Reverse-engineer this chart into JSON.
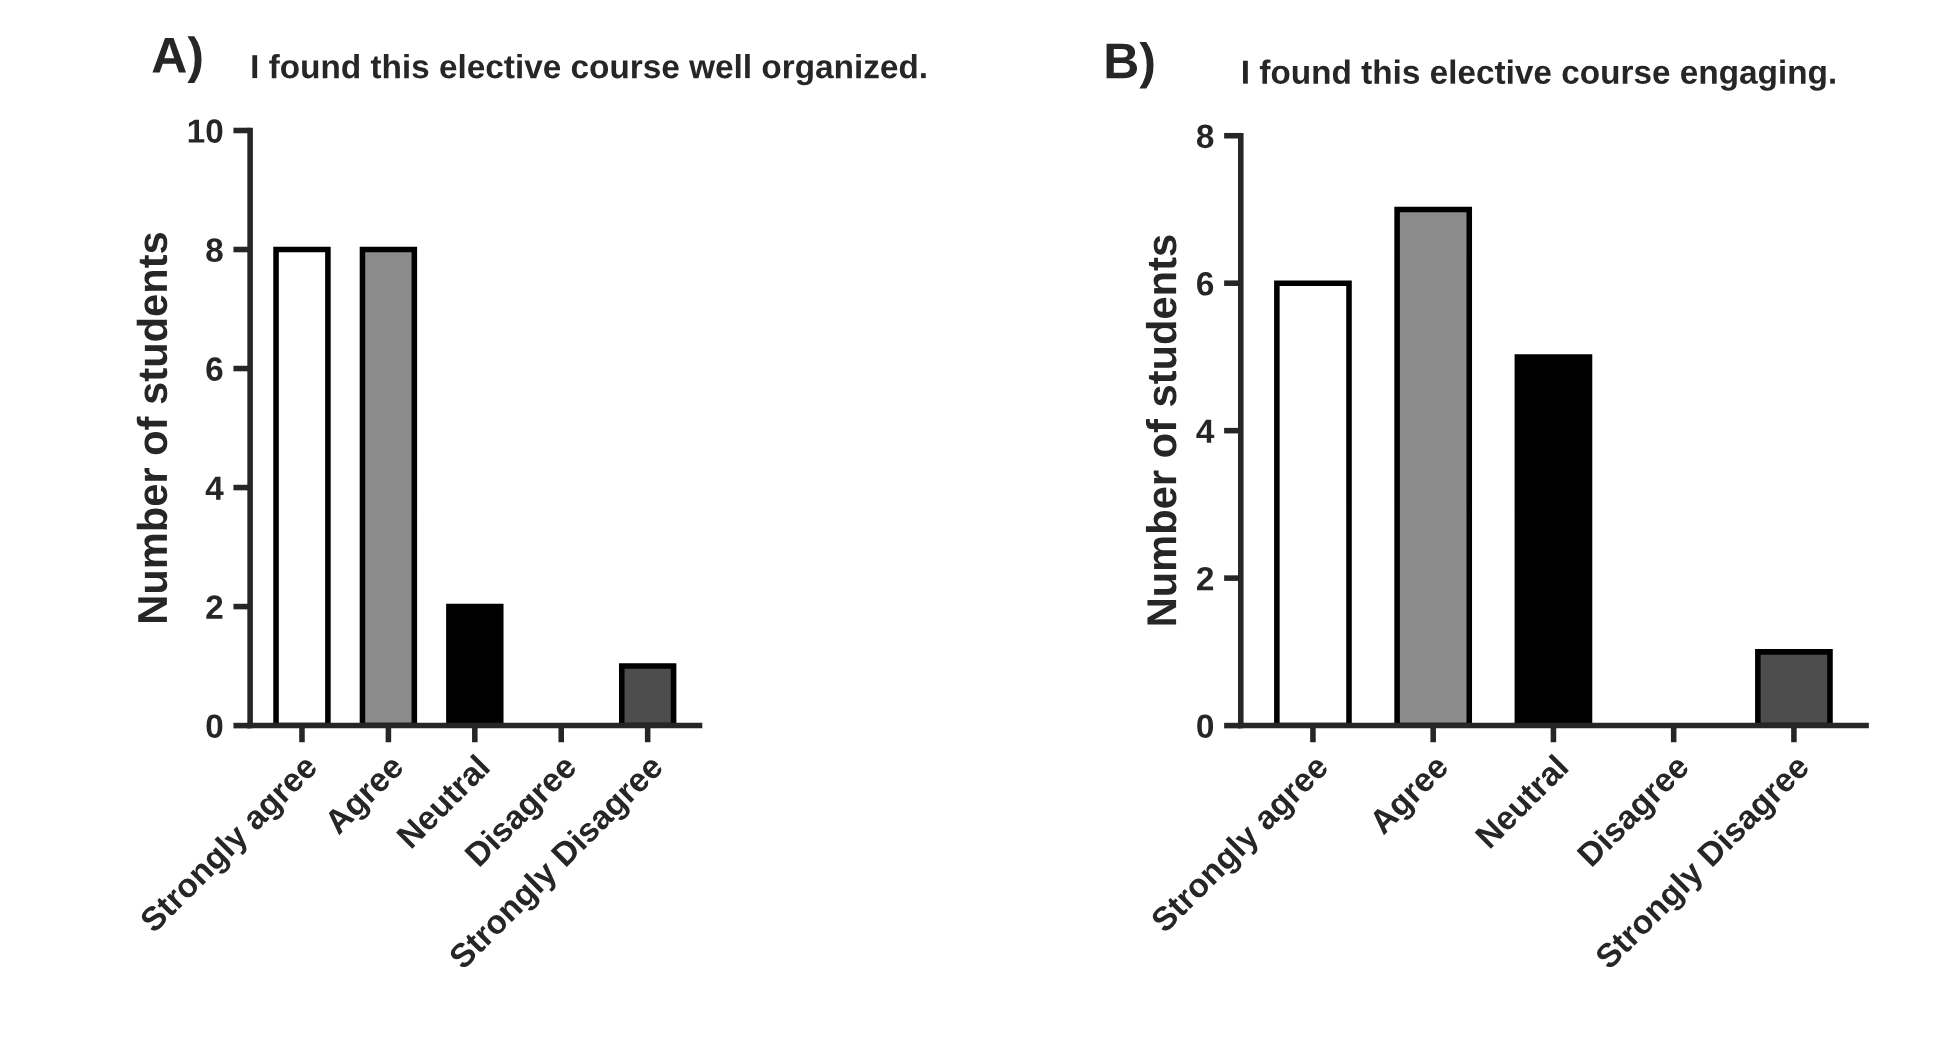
{
  "chart_data": [
    {
      "type": "bar",
      "title": "I found this elective course well organized.",
      "annotations": [
        "A)"
      ],
      "ylabel": "Number of students",
      "categories": [
        "Strongly agree",
        "Agree",
        "Neutral",
        "Disagree",
        "Strongly Disagree"
      ],
      "values": [
        8,
        8,
        2,
        0,
        1
      ],
      "colors": [
        "#ffffff",
        "#8c8c8c",
        "#000000",
        "#ffffff",
        "#4d4d4d"
      ],
      "ylim": [
        0,
        10
      ],
      "yticks": [
        0,
        2,
        4,
        6,
        8,
        10
      ],
      "grid": false,
      "legend": false
    },
    {
      "type": "bar",
      "title": "I found this elective course engaging.",
      "annotations": [
        "B)"
      ],
      "ylabel": "Number of students",
      "categories": [
        "Strongly agree",
        "Agree",
        "Neutral",
        "Disagree",
        "Strongly Disagree"
      ],
      "values": [
        6,
        7,
        5,
        0,
        1
      ],
      "colors": [
        "#ffffff",
        "#8c8c8c",
        "#000000",
        "#ffffff",
        "#4d4d4d"
      ],
      "ylim": [
        0,
        8
      ],
      "yticks": [
        0,
        2,
        4,
        6,
        8
      ],
      "grid": false,
      "legend": false
    }
  ]
}
